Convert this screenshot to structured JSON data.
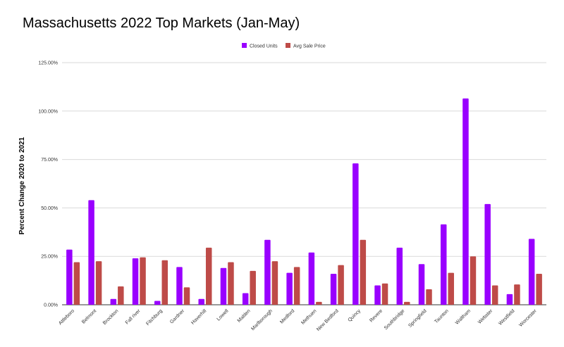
{
  "chart_data": {
    "type": "bar",
    "title": "Massachusetts 2022 Top Markets (Jan-May)",
    "ylabel": "Percent Change 2020 to 2021",
    "xlabel": "",
    "ylim": [
      0,
      125
    ],
    "y_ticks": [
      "0.00%",
      "25.00%",
      "50.00%",
      "75.00%",
      "100.00%",
      "125.00%"
    ],
    "grid": true,
    "legend_position": "top-center",
    "categories": [
      "Attleboro",
      "Belmont",
      "Brockton",
      "Fall river",
      "Fitchburg",
      "Gardner",
      "Haverhill",
      "Lowell",
      "Malden",
      "Marlborough",
      "Medford",
      "Methuen",
      "New Bedford",
      "Quincy",
      "Revere",
      "Southbridge",
      "Springfield",
      "Taunton",
      "Waltham",
      "Webster",
      "Westfield",
      "Worcester"
    ],
    "series": [
      {
        "name": "Closed Units",
        "color": "#9900ff",
        "values": [
          28.5,
          54,
          3,
          24,
          2,
          19.5,
          3,
          19,
          6,
          33.5,
          16.5,
          27,
          16,
          73,
          10,
          29.5,
          21,
          41.5,
          106.5,
          52,
          5.5,
          34
        ]
      },
      {
        "name": "Avg Sale Price",
        "color": "#be4b48",
        "values": [
          22,
          22.5,
          9.5,
          24.5,
          23,
          9,
          29.5,
          22,
          17.5,
          22.5,
          19.5,
          1.5,
          20.5,
          33.5,
          11,
          1.5,
          8,
          16.5,
          25,
          10,
          10.5,
          16
        ]
      }
    ]
  }
}
